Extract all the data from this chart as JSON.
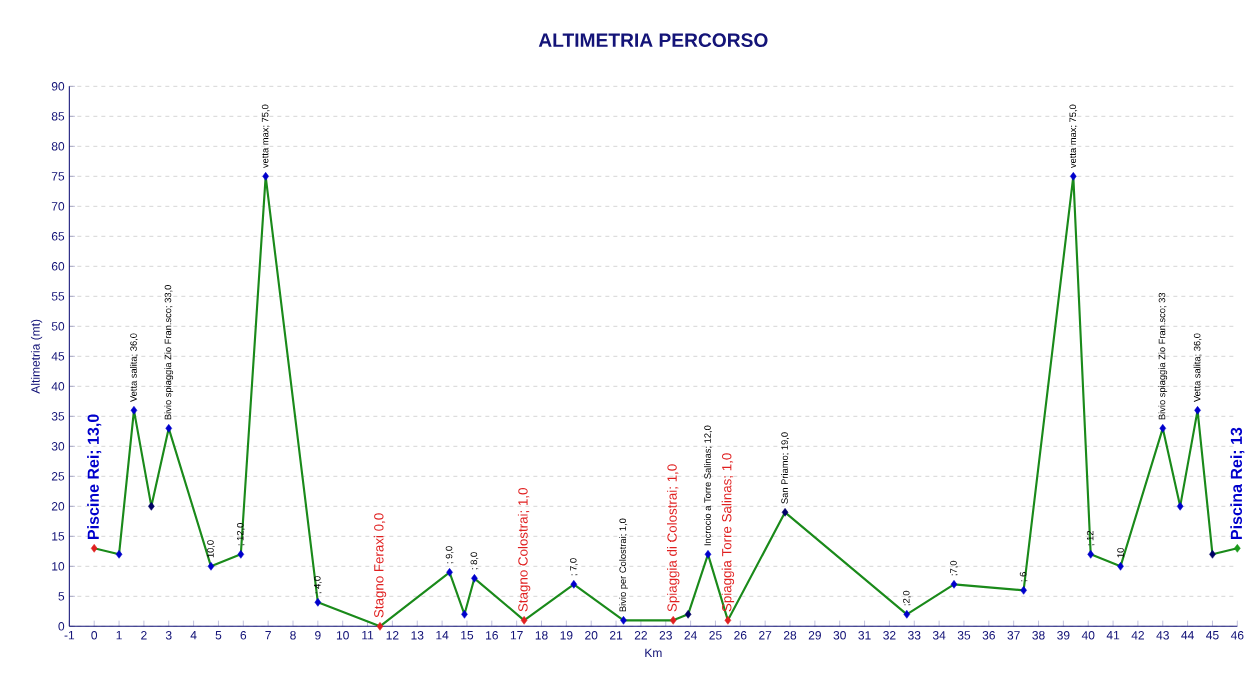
{
  "chart_data": {
    "type": "line",
    "title": "ALTIMETRIA PERCORSO",
    "xlabel": "Km",
    "ylabel": "Altimetria (mt)",
    "xlim": [
      -1,
      46
    ],
    "xticks": [
      -1,
      0,
      1,
      2,
      3,
      4,
      5,
      6,
      7,
      8,
      9,
      10,
      11,
      12,
      13,
      14,
      15,
      16,
      17,
      18,
      19,
      20,
      21,
      22,
      23,
      24,
      25,
      26,
      27,
      28,
      29,
      30,
      31,
      32,
      33,
      34,
      35,
      36,
      37,
      38,
      39,
      40,
      41,
      42,
      43,
      44,
      45,
      46
    ],
    "ylim": [
      0,
      90
    ],
    "yticks": [
      0,
      5,
      10,
      15,
      20,
      25,
      30,
      35,
      40,
      45,
      50,
      55,
      60,
      65,
      70,
      75,
      80,
      85,
      90
    ],
    "grid": "y",
    "marker": "diamond",
    "line_style": "solid",
    "series": [
      {
        "color": "#1a8a1a",
        "x": [
          0,
          1,
          1.6,
          2.3,
          3,
          4.7,
          5.9,
          6.9,
          9,
          11.5,
          14.3,
          14.9,
          15.3,
          17.3,
          19.3,
          21.3,
          23.3,
          23.9,
          24.7,
          25.5,
          27.8,
          32.7,
          34.6,
          37.4,
          39.4,
          40.1,
          41.3,
          43,
          43.7,
          44.4,
          45,
          46
        ],
        "values": [
          13,
          12,
          36,
          20,
          33,
          10,
          12,
          75,
          4,
          0,
          9,
          2,
          8,
          1,
          7,
          1,
          1,
          2,
          12,
          1,
          19,
          2,
          7,
          6,
          75,
          12,
          10,
          33,
          20,
          36,
          12,
          13
        ],
        "colors": [
          "#e02020",
          "#0000cc",
          "#0000cc",
          "#000066",
          "#0000cc",
          "#0000cc",
          "#0000cc",
          "#0000cc",
          "#0000cc",
          "#e02020",
          "#0000cc",
          "#0000cc",
          "#0000cc",
          "#e02020",
          "#0000cc",
          "#0000cc",
          "#e02020",
          "#000066",
          "#0000cc",
          "#e02020",
          "#000066",
          "#0000cc",
          "#0000cc",
          "#0000cc",
          "#0000cc",
          "#0000cc",
          "#0000cc",
          "#0000cc",
          "#0000cc",
          "#0000cc",
          "#000066",
          "#1a9a1a"
        ]
      }
    ],
    "annotations": [
      {
        "text": "Piscine Rei; 13,0",
        "x": 0,
        "y": 13
      },
      {
        "text": "Vetta salita; 36,0",
        "x": 1.6,
        "y": 36
      },
      {
        "text": "Bivio spiaggia Zio Fran.sco; 33,0",
        "x": 3,
        "y": 33
      },
      {
        "text": "10,0",
        "x": 4.7,
        "y": 10
      },
      {
        "text": "; 12,0",
        "x": 5.9,
        "y": 12
      },
      {
        "text": "vetta max; 75,0",
        "x": 6.9,
        "y": 75
      },
      {
        "text": "; 4,0",
        "x": 9,
        "y": 4
      },
      {
        "text": "Stagno Feraxi 0,0",
        "x": 11.5,
        "y": 0
      },
      {
        "text": "; 9,0",
        "x": 14.3,
        "y": 9
      },
      {
        "text": "; 8,0",
        "x": 15.3,
        "y": 8
      },
      {
        "text": "Stagno Colostrai; 1,0",
        "x": 17.3,
        "y": 1
      },
      {
        "text": "; 7,0",
        "x": 19.3,
        "y": 7
      },
      {
        "text": "Bivio per Colostrai; 1,0",
        "x": 21.3,
        "y": 1
      },
      {
        "text": "Spiaggia di Colostrai; 1,0",
        "x": 23.3,
        "y": 1
      },
      {
        "text": "Incrocio a Torre Salinas; 12,0",
        "x": 24.7,
        "y": 12
      },
      {
        "text": "Spiaggia Torre Salinas; 1,0",
        "x": 25.5,
        "y": 1
      },
      {
        "text": "San Priamo; 19,0",
        "x": 27.8,
        "y": 19
      },
      {
        "text": ";2,0",
        "x": 32.7,
        "y": 2
      },
      {
        "text": ";7,0",
        "x": 34.6,
        "y": 7
      },
      {
        "text": "; 6",
        "x": 37.4,
        "y": 6
      },
      {
        "text": "vetta max; 75,0",
        "x": 39.4,
        "y": 75
      },
      {
        "text": "; 12",
        "x": 40.1,
        "y": 12
      },
      {
        "text": "10",
        "x": 41.3,
        "y": 10
      },
      {
        "text": "Bivio spiaggia Zio Fran.sco; 33",
        "x": 43,
        "y": 33
      },
      {
        "text": "Vetta salita; 36,0",
        "x": 44.4,
        "y": 36
      },
      {
        "text": "Piscina Rei; 13",
        "x": 46,
        "y": 13
      }
    ]
  }
}
